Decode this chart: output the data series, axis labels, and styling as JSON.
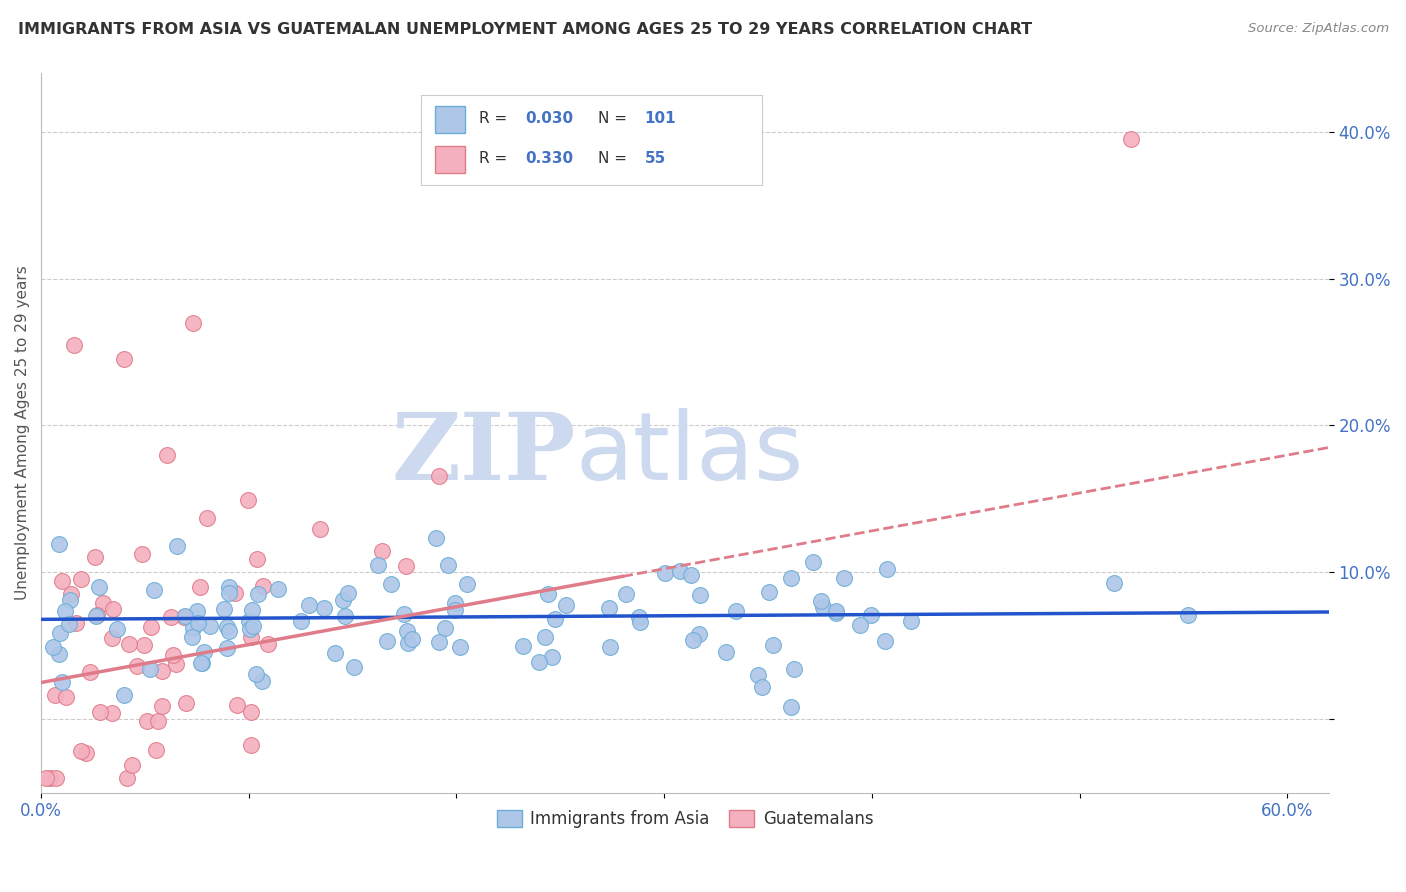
{
  "title": "IMMIGRANTS FROM ASIA VS GUATEMALAN UNEMPLOYMENT AMONG AGES 25 TO 29 YEARS CORRELATION CHART",
  "source": "Source: ZipAtlas.com",
  "ylabel": "Unemployment Among Ages 25 to 29 years",
  "xlim": [
    0.0,
    0.62
  ],
  "ylim": [
    -0.05,
    0.44
  ],
  "xticks": [
    0.0,
    0.1,
    0.2,
    0.3,
    0.4,
    0.5,
    0.6
  ],
  "xticklabels": [
    "0.0%",
    "",
    "",
    "",
    "",
    "",
    "60.0%"
  ],
  "yticks": [
    0.0,
    0.1,
    0.2,
    0.3,
    0.4
  ],
  "yticklabels": [
    "",
    "10.0%",
    "20.0%",
    "30.0%",
    "40.0%"
  ],
  "series_asia": {
    "label": "Immigrants from Asia",
    "color": "#aec6e8",
    "edge_color": "#6baed6",
    "R": 0.03,
    "N": 101,
    "trend_color": "#2255cc",
    "trend_style": "-",
    "trend_y0": 0.068,
    "trend_y1": 0.073
  },
  "series_guatemalan": {
    "label": "Guatemalans",
    "color": "#f4b0be",
    "edge_color": "#e07b8a",
    "R": 0.33,
    "N": 55,
    "trend_color": "#e07b8a",
    "trend_style": "-",
    "trend_y0": 0.025,
    "trend_y1": 0.185,
    "trend_solid_end": 0.28,
    "trend_dash_start": 0.28,
    "trend_dash_end": 0.62
  },
  "watermark_zip": "ZIP",
  "watermark_atlas": "atlas",
  "watermark_color": "#ccd9ee",
  "background_color": "#ffffff",
  "grid_color": "#cccccc",
  "title_color": "#333333",
  "axis_label_color": "#555555",
  "tick_color": "#4472c4",
  "legend_text_color": "#333333",
  "legend_value_color": "#4472c4"
}
